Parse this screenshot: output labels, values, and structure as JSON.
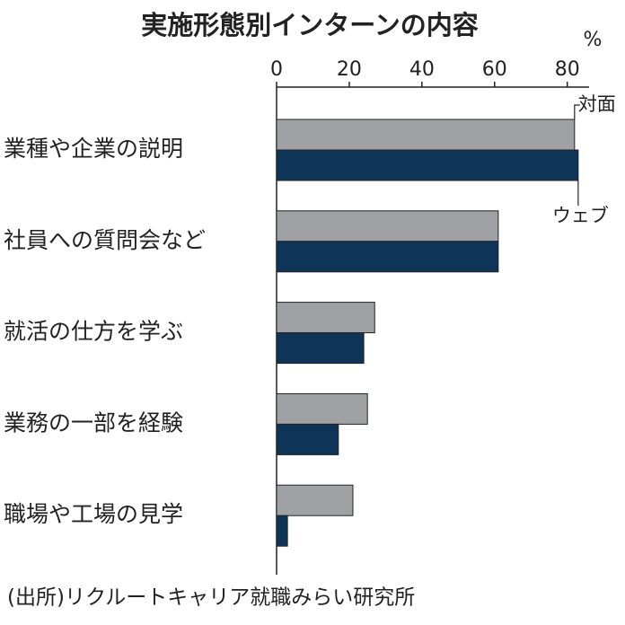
{
  "chart_data": {
    "type": "bar",
    "orientation": "horizontal",
    "title": "実施形態別インターンの内容",
    "unit": "%",
    "source": "(出所)リクルートキャリア就職みらい研究所",
    "categories": [
      "業種や企業の説明",
      "社員への質問会など",
      "就活の仕方を学ぶ",
      "業務の一部を経験",
      "職場や工場の見学"
    ],
    "series": [
      {
        "name": "対面",
        "color": "#a0a1a5",
        "values": [
          82,
          61,
          27,
          25,
          21
        ]
      },
      {
        "name": "ウェブ",
        "color": "#0e3558",
        "values": [
          83,
          61,
          24,
          17,
          3
        ]
      }
    ],
    "xlim": [
      0,
      86
    ],
    "xticks": [
      0,
      20,
      40,
      60,
      80
    ]
  }
}
